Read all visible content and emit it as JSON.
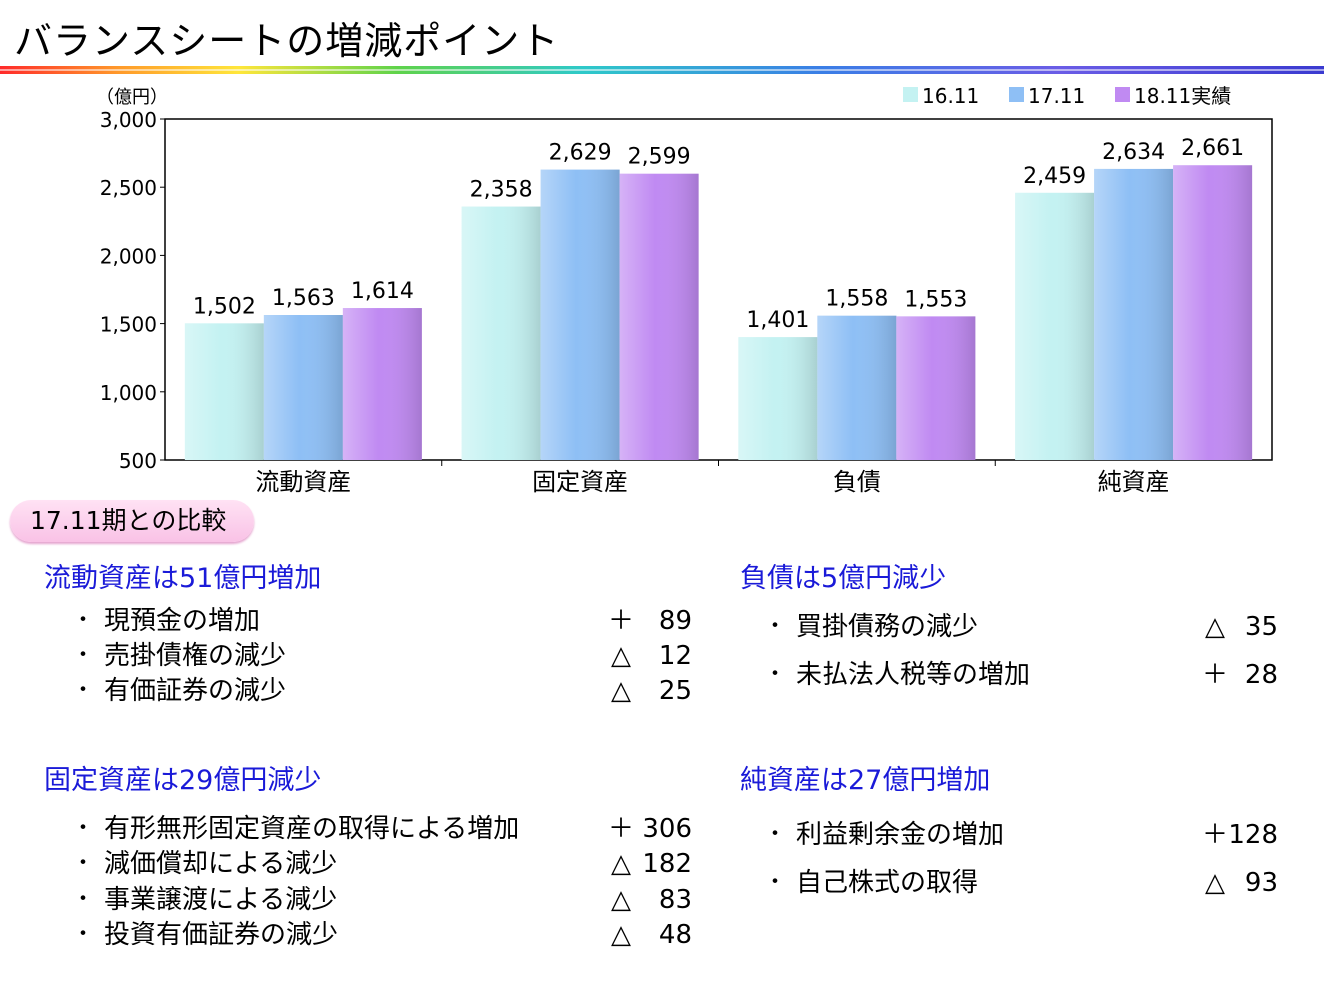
{
  "title": "バランスシートの増減ポイント",
  "chart_data": {
    "type": "bar",
    "unit_label": "（億円）",
    "categories": [
      "流動資産",
      "固定資産",
      "負債",
      "純資産"
    ],
    "series": [
      {
        "name": "16.11",
        "color": "#c4f2f2",
        "values": [
          1502,
          2358,
          1401,
          2459
        ],
        "labels": [
          "1,502",
          "2,358",
          "1,401",
          "2,459"
        ]
      },
      {
        "name": "17.11",
        "color": "#8ebff5",
        "values": [
          1563,
          2629,
          1558,
          2634
        ],
        "labels": [
          "1,563",
          "2,629",
          "1,558",
          "2,634"
        ]
      },
      {
        "name": "18.11実績",
        "color": "#c08af2",
        "values": [
          1614,
          2599,
          1553,
          2661
        ],
        "labels": [
          "1,614",
          "2,599",
          "1,553",
          "2,661"
        ]
      }
    ],
    "ylim": [
      500,
      3000
    ],
    "yticks": [
      "500",
      "1,000",
      "1,500",
      "2,000",
      "2,500",
      "3,000"
    ],
    "legend_position": "top-right",
    "grid": false
  },
  "comparison_label": "17.11期との比較",
  "sections": [
    {
      "heading": "流動資産は51億円増加",
      "items": [
        {
          "bullet": "・",
          "label": "現預金の増加",
          "sign": "＋",
          "amount": "89"
        },
        {
          "bullet": "・",
          "label": "売掛債権の減少",
          "sign": "△",
          "amount": "12"
        },
        {
          "bullet": "・",
          "label": "有価証券の減少",
          "sign": "△",
          "amount": "25"
        }
      ]
    },
    {
      "heading": "負債は5億円減少",
      "items": [
        {
          "bullet": "・",
          "label": "買掛債務の減少",
          "sign": "△",
          "amount": "35"
        },
        {
          "bullet": "・",
          "label": "未払法人税等の増加",
          "sign": "＋",
          "amount": "28"
        }
      ]
    },
    {
      "heading": "固定資産は29億円減少",
      "items": [
        {
          "bullet": "・",
          "label": "有形無形固定資産の取得による増加",
          "sign": "＋",
          "amount": "306"
        },
        {
          "bullet": "・",
          "label": "減価償却による減少",
          "sign": "△",
          "amount": "182"
        },
        {
          "bullet": "・",
          "label": "事業譲渡による減少",
          "sign": "△",
          "amount": "83"
        },
        {
          "bullet": "・",
          "label": "投資有価証券の減少",
          "sign": "△",
          "amount": "48"
        }
      ]
    },
    {
      "heading": "純資産は27億円増加",
      "items": [
        {
          "bullet": "・",
          "label": "利益剰余金の増加",
          "sign": "＋",
          "amount": "128"
        },
        {
          "bullet": "・",
          "label": "自己株式の取得",
          "sign": "△",
          "amount": "93"
        }
      ]
    }
  ]
}
